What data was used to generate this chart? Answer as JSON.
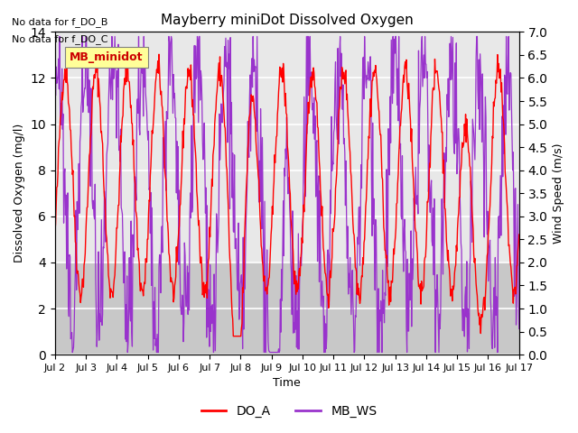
{
  "title": "Mayberry miniDot Dissolved Oxygen",
  "xlabel": "Time",
  "ylabel_left": "Dissolved Oxygen (mg/l)",
  "ylabel_right": "Wind Speed (m/s)",
  "annotations": [
    "No data for f_DO_B",
    "No data for f_DO_C"
  ],
  "legend_label": "MB_minidot",
  "x_tick_labels": [
    "Jul 2",
    "Jul 3",
    "Jul 4",
    "Jul 5",
    "Jul 6",
    "Jul 7",
    "Jul 8",
    "Jul 9",
    "Jul 10",
    "Jul 11",
    "Jul 12",
    "Jul 13",
    "Jul 14",
    "Jul 15",
    "Jul 16",
    "Jul 17"
  ],
  "ylim_left": [
    0,
    14
  ],
  "ylim_right": [
    0.0,
    7.0
  ],
  "yticks_left": [
    0,
    2,
    4,
    6,
    8,
    10,
    12,
    14
  ],
  "yticks_right": [
    0.0,
    0.5,
    1.0,
    1.5,
    2.0,
    2.5,
    3.0,
    3.5,
    4.0,
    4.5,
    5.0,
    5.5,
    6.0,
    6.5,
    7.0
  ],
  "shaded_region": [
    0,
    4
  ],
  "DO_A_color": "red",
  "MB_WS_color": "#9933cc",
  "background_color": "#e8e8e8",
  "legend_box_color": "#ffff99",
  "legend_text_color": "#cc0000",
  "grid_color": "white",
  "n_points": 800,
  "seed": 42
}
